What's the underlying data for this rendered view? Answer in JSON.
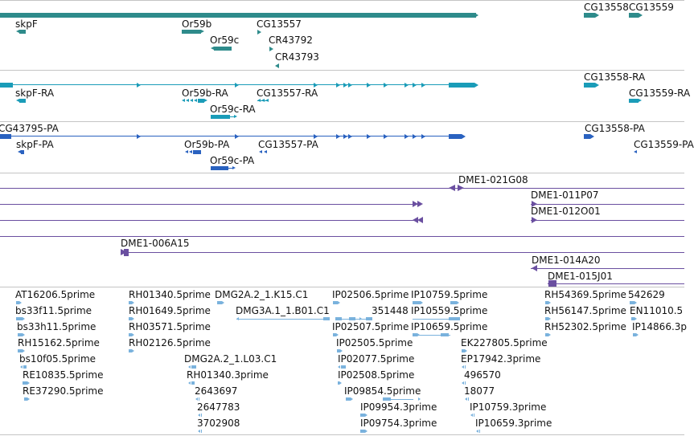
{
  "colors": {
    "gene": "#2e8b8b",
    "mrna": "#1a9cb8",
    "protein": "#2a62c0",
    "clone": "#6a4fa0",
    "est": "#7ab2dd",
    "separator": "#c4c4c4"
  },
  "tracks": [
    {
      "name": "gene-track",
      "labels": [
        "skpF",
        "Or59b",
        "Or59c",
        "CG13557",
        "CR43792",
        "CR43793",
        "CG13558",
        "CG13559"
      ]
    },
    {
      "name": "mrna-track",
      "labels": [
        "skpF-RA",
        "Or59b-RA",
        "Or59c-RA",
        "CG13557-RA",
        "CG13558-RA",
        "CG13559-RA"
      ]
    },
    {
      "name": "protein-track",
      "labels": [
        "CG43795-PA",
        "skpF-PA",
        "Or59b-PA",
        "Or59c-PA",
        "CG13557-PA",
        "CG13558-PA",
        "CG13559-PA"
      ]
    },
    {
      "name": "clone-track",
      "labels": [
        "DME1-021G08",
        "DME1-011P07",
        "DME1-012O01",
        "DME1-006A15",
        "DME1-014A20",
        "DME1-015J01"
      ]
    },
    {
      "name": "est-track",
      "labels": [
        "AT16206.5prime",
        "bs33f11.5prime",
        "bs33h11.5prime",
        "RH15162.5prime",
        "bs10f05.5prime",
        "RE10835.5prime",
        "RE37290.5prime",
        "RH01340.5prime",
        "RH01649.5prime",
        "RH03571.5prime",
        "RH02126.5prime",
        "DMG2A.2_1.K15.C1",
        "DMG3A.1_1.B01.C1",
        "DMG2A.2_1.L03.C1",
        "RH01340.3prime",
        "2643697",
        "2647783",
        "3702908",
        "IP02506.5prime",
        "IP10759.5prime",
        "351448",
        "IP10559.5prime",
        "IP02507.5prime",
        "IP10659.5prime",
        "IP02505.5prime",
        "IP02077.5prime",
        "IP02508.5prime",
        "IP09854.5prime",
        "IP09954.3prime",
        "IP09754.3prime",
        "EK227805.5prime",
        "EP17942.3prime",
        "496570",
        "18077",
        "IP10759.3prime",
        "IP10659.3prime",
        "RH54369.5prime",
        "RH56147.5prime",
        "RH52302.5prime",
        "542629",
        "EN11010.5",
        "IP14866.3p"
      ]
    }
  ]
}
